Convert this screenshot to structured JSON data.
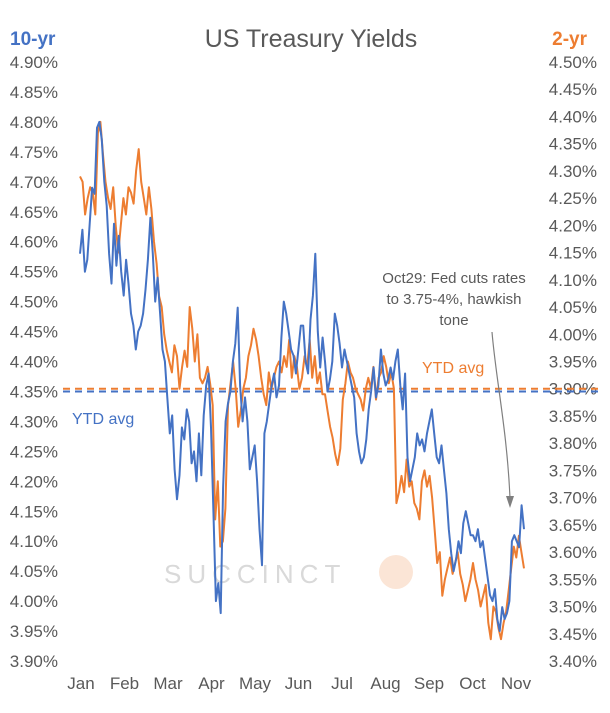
{
  "chart_data": {
    "type": "line",
    "title": "US Treasury Yields",
    "left_axis": {
      "label": "10-yr",
      "color": "#4472c4",
      "min": 3.9,
      "max": 4.9,
      "step": 0.05,
      "ticks": [
        "4.90%",
        "4.85%",
        "4.80%",
        "4.75%",
        "4.70%",
        "4.65%",
        "4.60%",
        "4.55%",
        "4.50%",
        "4.45%",
        "4.40%",
        "4.35%",
        "4.30%",
        "4.25%",
        "4.20%",
        "4.15%",
        "4.10%",
        "4.05%",
        "4.00%",
        "3.95%",
        "3.90%"
      ]
    },
    "right_axis": {
      "label": "2-yr",
      "color": "#ed7d31",
      "min": 3.4,
      "max": 4.5,
      "step": 0.05,
      "ticks": [
        "4.50%",
        "4.45%",
        "4.40%",
        "4.35%",
        "4.30%",
        "4.25%",
        "4.20%",
        "4.15%",
        "4.10%",
        "4.05%",
        "4.00%",
        "3.95%",
        "3.90%",
        "3.85%",
        "3.80%",
        "3.75%",
        "3.70%",
        "3.65%",
        "3.60%",
        "3.55%",
        "3.50%",
        "3.45%",
        "3.40%"
      ]
    },
    "x_labels": [
      "Jan",
      "Feb",
      "Mar",
      "Apr",
      "May",
      "Jun",
      "Jul",
      "Aug",
      "Sep",
      "Oct",
      "Nov"
    ],
    "series": [
      {
        "name": "10-yr",
        "axis": "left",
        "color": "#4472c4",
        "values": [
          4.58,
          4.62,
          4.55,
          4.57,
          4.63,
          4.69,
          4.68,
          4.79,
          4.8,
          4.77,
          4.7,
          4.66,
          4.58,
          4.53,
          4.63,
          4.56,
          4.61,
          4.55,
          4.51,
          4.57,
          4.53,
          4.48,
          4.46,
          4.42,
          4.45,
          4.46,
          4.48,
          4.52,
          4.57,
          4.64,
          4.58,
          4.5,
          4.54,
          4.48,
          4.42,
          4.4,
          4.34,
          4.28,
          4.31,
          4.22,
          4.17,
          4.21,
          4.29,
          4.27,
          4.32,
          4.3,
          4.23,
          4.25,
          4.2,
          4.28,
          4.21,
          4.31,
          4.36,
          4.38,
          4.29,
          4.15,
          4.0,
          4.03,
          3.98,
          4.19,
          4.3,
          4.33,
          4.35,
          4.4,
          4.43,
          4.49,
          4.36,
          4.3,
          4.34,
          4.3,
          4.22,
          4.24,
          4.26,
          4.2,
          4.12,
          4.06,
          4.28,
          4.3,
          4.33,
          4.36,
          4.38,
          4.34,
          4.36,
          4.44,
          4.5,
          4.48,
          4.45,
          4.42,
          4.41,
          4.38,
          4.42,
          4.46,
          4.46,
          4.4,
          4.38,
          4.47,
          4.51,
          4.58,
          4.45,
          4.39,
          4.44,
          4.4,
          4.35,
          4.37,
          4.4,
          4.48,
          4.46,
          4.43,
          4.39,
          4.42,
          4.4,
          4.38,
          4.36,
          4.34,
          4.28,
          4.25,
          4.23,
          4.24,
          4.27,
          4.32,
          4.35,
          4.39,
          4.34,
          4.36,
          4.42,
          4.38,
          4.36,
          4.37,
          4.39,
          4.37,
          4.4,
          4.42,
          4.36,
          4.32,
          4.38,
          4.24,
          4.2,
          4.22,
          4.24,
          4.28,
          4.26,
          4.27,
          4.25,
          4.28,
          4.3,
          4.32,
          4.28,
          4.24,
          4.23,
          4.26,
          4.22,
          4.18,
          4.12,
          4.08,
          4.05,
          4.07,
          4.1,
          4.08,
          4.13,
          4.15,
          4.13,
          4.11,
          4.11,
          4.1,
          4.12,
          4.09,
          4.1,
          4.07,
          4.04,
          4.01,
          4.0,
          4.02,
          3.97,
          3.95,
          3.99,
          3.97,
          3.98,
          4.0,
          4.1,
          4.11,
          4.1,
          4.09,
          4.16,
          4.12
        ]
      },
      {
        "name": "2-yr",
        "axis": "right",
        "color": "#ed7d31",
        "values": [
          4.29,
          4.28,
          4.22,
          4.25,
          4.27,
          4.26,
          4.22,
          4.37,
          4.39,
          4.33,
          4.28,
          4.25,
          4.23,
          4.27,
          4.2,
          4.15,
          4.2,
          4.25,
          4.22,
          4.27,
          4.26,
          4.24,
          4.3,
          4.34,
          4.28,
          4.25,
          4.22,
          4.27,
          4.23,
          4.17,
          4.13,
          4.07,
          4.05,
          4.0,
          3.97,
          3.95,
          3.93,
          3.98,
          3.96,
          3.9,
          3.94,
          3.97,
          3.94,
          4.05,
          4.01,
          3.95,
          4.0,
          3.92,
          3.91,
          3.92,
          3.94,
          3.91,
          3.87,
          3.66,
          3.73,
          3.61,
          3.62,
          3.68,
          3.87,
          3.91,
          3.95,
          3.9,
          3.83,
          3.86,
          3.9,
          3.92,
          3.96,
          3.98,
          4.01,
          3.99,
          3.96,
          3.92,
          3.89,
          3.87,
          3.93,
          3.9,
          3.92,
          3.94,
          3.95,
          3.93,
          3.96,
          3.94,
          3.99,
          3.92,
          3.96,
          3.94,
          3.9,
          3.92,
          3.96,
          3.94,
          3.99,
          3.92,
          3.96,
          3.91,
          3.93,
          3.89,
          3.89,
          3.86,
          3.83,
          3.81,
          3.78,
          3.76,
          3.79,
          3.88,
          3.91,
          3.95,
          3.93,
          3.92,
          3.9,
          3.89,
          3.88,
          3.86,
          3.9,
          3.92,
          3.9,
          3.94,
          3.88,
          3.92,
          3.93,
          3.96,
          3.94,
          3.91,
          3.93,
          3.9,
          3.69,
          3.71,
          3.74,
          3.71,
          3.77,
          3.72,
          3.73,
          3.69,
          3.68,
          3.66,
          3.73,
          3.75,
          3.72,
          3.74,
          3.7,
          3.64,
          3.58,
          3.6,
          3.52,
          3.55,
          3.57,
          3.59,
          3.56,
          3.58,
          3.6,
          3.56,
          3.54,
          3.51,
          3.53,
          3.55,
          3.58,
          3.55,
          3.53,
          3.5,
          3.52,
          3.54,
          3.47,
          3.44,
          3.5,
          3.49,
          3.46,
          3.44,
          3.47,
          3.49,
          3.53,
          3.57,
          3.61,
          3.59,
          3.63,
          3.6,
          3.57
        ]
      }
    ],
    "reference_lines": [
      {
        "label": "YTD avg",
        "axis": "left",
        "value": 4.35,
        "color": "#4472c4"
      },
      {
        "label": "YTD avg",
        "axis": "right",
        "value": 3.9,
        "color": "#ed7d31"
      }
    ],
    "annotation": {
      "lines": [
        "Oct29: Fed cuts rates",
        "to 3.75-4%, hawkish",
        "tone"
      ]
    },
    "watermark": "SUCCINCT",
    "grid": false,
    "legend": "none"
  }
}
